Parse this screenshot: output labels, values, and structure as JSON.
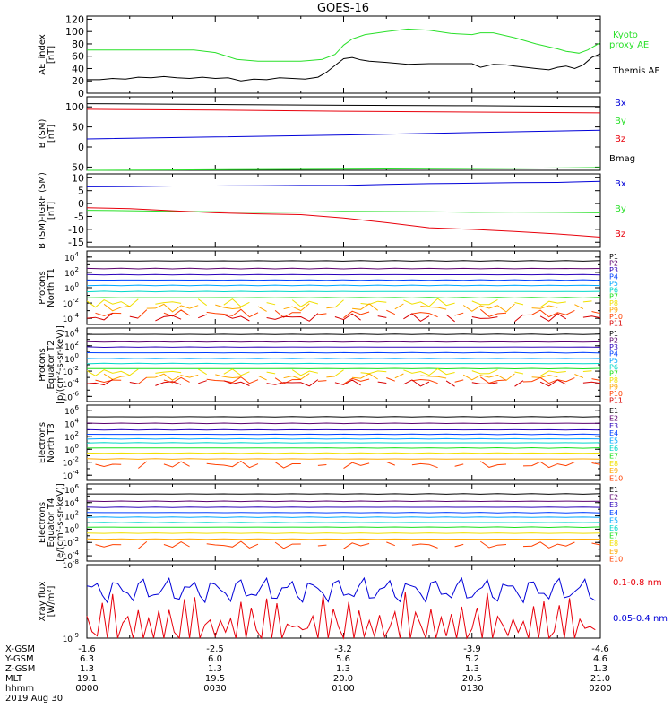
{
  "title": "GOES-16",
  "colors": {
    "black": "#000000",
    "red": "#e8000b",
    "green": "#2ae02a",
    "blue": "#0000d8",
    "p": [
      "#000000",
      "#5b006d",
      "#2a00ba",
      "#0040ff",
      "#00a8ff",
      "#00d8c8",
      "#18e018",
      "#f0e000",
      "#ffa800",
      "#ff4000",
      "#d80000"
    ]
  },
  "panels": [
    {
      "id": "ae",
      "ylabel": [
        "AE_index",
        "[nT]"
      ],
      "scale": "linear",
      "ticks": [
        "120",
        "100",
        "80",
        "60",
        "40",
        "20",
        "0"
      ],
      "tickvals": [
        120,
        100,
        80,
        60,
        40,
        20,
        0
      ],
      "range": [
        0,
        125
      ],
      "legend": [
        {
          "text": "Kyoto",
          "color": "green"
        },
        {
          "text": "proxy AE",
          "color": "green"
        },
        {
          "text": "Themis AE",
          "color": "black"
        }
      ]
    },
    {
      "id": "bsm",
      "ylabel": [
        "B (SM)",
        "[nT]"
      ],
      "scale": "linear",
      "ticks": [
        "100",
        "50",
        "0",
        "-50"
      ],
      "tickvals": [
        100,
        50,
        0,
        -50
      ],
      "range": [
        -58,
        125
      ],
      "legend": [
        {
          "text": "Bx",
          "color": "blue"
        },
        {
          "text": "By",
          "color": "green"
        },
        {
          "text": "Bz",
          "color": "red"
        },
        {
          "text": "Bmag",
          "color": "black"
        }
      ]
    },
    {
      "id": "bigrf",
      "ylabel": [
        "B (SM)-IGRF (SM)",
        "[nT]"
      ],
      "scale": "linear",
      "ticks": [
        "10",
        "5",
        "0",
        "-5",
        "-10",
        "-15"
      ],
      "tickvals": [
        10,
        5,
        0,
        -5,
        -10,
        -15
      ],
      "range": [
        -17,
        11.5
      ],
      "legend": [
        {
          "text": "Bx",
          "color": "blue"
        },
        {
          "text": "By",
          "color": "green"
        },
        {
          "text": "Bz",
          "color": "red"
        }
      ]
    },
    {
      "id": "pn",
      "ylabel": [
        "Protons",
        "North T1"
      ],
      "scale": "log",
      "ticks": [
        "10",
        "10",
        "10",
        "10",
        "10"
      ],
      "exps": [
        "4",
        "2",
        "0",
        "-2",
        "-4"
      ],
      "tickvals": [
        4,
        2,
        0,
        -2,
        -4
      ],
      "range": [
        -4.8,
        4.8
      ],
      "legend": [
        "P1",
        "P2",
        "P3",
        "P4",
        "P5",
        "P6",
        "P7",
        "P8",
        "P9",
        "P10",
        "P11"
      ]
    },
    {
      "id": "pe",
      "ylabel": [
        "Protons",
        "Equator T2",
        "[p/(cm²-s-sr-keV)]"
      ],
      "scale": "log",
      "ticks": [
        "10",
        "10",
        "10",
        "10",
        "10",
        "10"
      ],
      "exps": [
        "4",
        "2",
        "0",
        "-2",
        "-4",
        "-6"
      ],
      "tickvals": [
        4,
        2,
        0,
        -2,
        -4,
        -6
      ],
      "range": [
        -6.8,
        4.8
      ],
      "legend": [
        "P1",
        "P2",
        "P3",
        "P4",
        "P5",
        "P6",
        "P7",
        "P8",
        "P9",
        "P10",
        "P11"
      ]
    },
    {
      "id": "en",
      "ylabel": [
        "Electrons",
        "North T3"
      ],
      "scale": "log",
      "ticks": [
        "10",
        "10",
        "10",
        "10",
        "10",
        "10"
      ],
      "exps": [
        "6",
        "4",
        "2",
        "0",
        "-2",
        "-4"
      ],
      "tickvals": [
        6,
        4,
        2,
        0,
        -2,
        -4
      ],
      "range": [
        -4.8,
        6.8
      ],
      "legend": [
        "E1",
        "E2",
        "E3",
        "E4",
        "E5",
        "E6",
        "E7",
        "E8",
        "E9",
        "E10"
      ]
    },
    {
      "id": "ee",
      "ylabel": [
        "Electrons",
        "Equator T4",
        "[e/(cm²-s-sr-keV)]"
      ],
      "scale": "log",
      "ticks": [
        "10",
        "10",
        "10",
        "10",
        "10",
        "10"
      ],
      "exps": [
        "6",
        "4",
        "2",
        "0",
        "-2",
        "-4"
      ],
      "tickvals": [
        6,
        4,
        2,
        0,
        -2,
        -4
      ],
      "range": [
        -4.8,
        6.8
      ],
      "legend": [
        "E1",
        "E2",
        "E3",
        "E4",
        "E5",
        "E6",
        "E7",
        "E8",
        "E9",
        "E10"
      ]
    },
    {
      "id": "xray",
      "ylabel": [
        "Xray flux",
        "[W/m²]"
      ],
      "scale": "log",
      "ticks": [
        "10",
        "10"
      ],
      "exps": [
        "-8",
        "-9"
      ],
      "tickvals": [
        -8,
        -9
      ],
      "range": [
        -9,
        -8
      ],
      "legend": [
        {
          "text": "0.1-0.8 nm",
          "color": "red"
        },
        {
          "text": "0.05-0.4 nm",
          "color": "blue"
        }
      ]
    }
  ],
  "orbit": {
    "labels": [
      "X-GSM",
      "Y-GSM",
      "Z-GSM",
      "MLT",
      "hhmm",
      "2019 Aug 30"
    ],
    "columns": [
      [
        "-1.6",
        "6.3",
        "1.3",
        "19.1",
        "0000"
      ],
      [
        "-2.5",
        "6.0",
        "1.3",
        "19.5",
        "0030"
      ],
      [
        "-3.2",
        "5.6",
        "1.3",
        "20.0",
        "0100"
      ],
      [
        "-3.9",
        "5.2",
        "1.3",
        "20.5",
        "0130"
      ],
      [
        "-4.6",
        "4.6",
        "1.3",
        "21.0",
        "0200"
      ]
    ]
  },
  "chart_data": {
    "type": "line",
    "title": "GOES-16",
    "x_unit": "minutes since 0000 UT",
    "xlim": [
      0,
      120
    ],
    "series": [
      {
        "panel": "ae",
        "name": "Kyoto proxy AE",
        "color": "green",
        "x": [
          0,
          5,
          10,
          15,
          20,
          25,
          30,
          35,
          40,
          45,
          50,
          52,
          55,
          58,
          60,
          62,
          65,
          68,
          70,
          75,
          80,
          85,
          90,
          92,
          95,
          100,
          105,
          110,
          112,
          115,
          117,
          120
        ],
        "y": [
          70,
          70,
          70,
          70,
          70,
          70,
          66,
          55,
          52,
          52,
          52,
          53,
          55,
          63,
          78,
          88,
          95,
          98,
          100,
          104,
          102,
          97,
          95,
          98,
          98,
          90,
          80,
          72,
          68,
          65,
          70,
          82
        ]
      },
      {
        "panel": "ae",
        "name": "Themis AE",
        "color": "black",
        "x": [
          0,
          3,
          6,
          9,
          12,
          15,
          18,
          21,
          24,
          27,
          30,
          33,
          36,
          39,
          42,
          45,
          48,
          51,
          54,
          56,
          58,
          60,
          62,
          64,
          66,
          70,
          75,
          80,
          85,
          90,
          92,
          95,
          98,
          100,
          105,
          108,
          110,
          112,
          114,
          116,
          118,
          120
        ],
        "y": [
          22,
          22,
          24,
          23,
          26,
          25,
          27,
          25,
          24,
          26,
          24,
          25,
          20,
          23,
          22,
          25,
          24,
          23,
          26,
          34,
          45,
          56,
          58,
          54,
          52,
          50,
          47,
          48,
          48,
          48,
          42,
          47,
          46,
          44,
          40,
          38,
          42,
          44,
          40,
          46,
          58,
          64
        ]
      },
      {
        "panel": "bsm",
        "name": "Bmag",
        "color": "black",
        "x": [
          0,
          30,
          60,
          90,
          120
        ],
        "y": [
          108,
          106,
          104,
          103,
          101
        ]
      },
      {
        "panel": "bsm",
        "name": "Bz",
        "color": "red",
        "x": [
          0,
          30,
          60,
          90,
          120
        ],
        "y": [
          94,
          92,
          89,
          87,
          85
        ]
      },
      {
        "panel": "bsm",
        "name": "Bx",
        "color": "blue",
        "x": [
          0,
          30,
          60,
          90,
          120
        ],
        "y": [
          20,
          25,
          30,
          36,
          42
        ]
      },
      {
        "panel": "bsm",
        "name": "By",
        "color": "green",
        "x": [
          0,
          20,
          40,
          60,
          80,
          100,
          120
        ],
        "y": [
          -58,
          -57,
          -56,
          -55,
          -54,
          -53,
          -51
        ]
      },
      {
        "panel": "bigrf",
        "name": "Bx",
        "color": "blue",
        "x": [
          0,
          10,
          20,
          30,
          40,
          50,
          60,
          70,
          80,
          90,
          100,
          110,
          120
        ],
        "y": [
          6.5,
          6.6,
          6.8,
          6.8,
          6.9,
          7.0,
          7.0,
          7.4,
          7.7,
          7.9,
          8.1,
          8.2,
          8.6
        ]
      },
      {
        "panel": "bigrf",
        "name": "By",
        "color": "green",
        "x": [
          0,
          10,
          20,
          30,
          40,
          50,
          60,
          70,
          80,
          90,
          100,
          110,
          120
        ],
        "y": [
          -2.6,
          -2.8,
          -3.0,
          -3.2,
          -3.4,
          -3.3,
          -3.0,
          -3.1,
          -3.2,
          -3.4,
          -3.3,
          -3.4,
          -3.6
        ]
      },
      {
        "panel": "bigrf",
        "name": "Bz",
        "color": "red",
        "x": [
          0,
          10,
          20,
          30,
          40,
          50,
          60,
          70,
          80,
          90,
          100,
          110,
          120
        ],
        "y": [
          -1.6,
          -2.0,
          -2.8,
          -3.6,
          -4.0,
          -4.3,
          -5.6,
          -7.4,
          -9.4,
          -10.0,
          -10.8,
          -11.8,
          -13.0
        ]
      }
    ],
    "flux_levels": {
      "pn": [
        3.5,
        2.5,
        1.7,
        1.0,
        0.3,
        -0.5,
        -1.3,
        -2.0,
        -2.6,
        -3.4,
        -3.9
      ],
      "pe": [
        3.8,
        2.6,
        1.8,
        0.9,
        0.0,
        -0.8,
        -1.6,
        -2.2,
        -2.9,
        -3.5,
        -3.9
      ],
      "en": [
        5.0,
        4.0,
        3.0,
        2.3,
        1.6,
        1.0,
        0.2,
        -0.6,
        -1.5,
        -2.4
      ],
      "ee": [
        5.3,
        4.2,
        3.3,
        2.5,
        1.8,
        1.0,
        0.3,
        -0.6,
        -1.5,
        -2.4
      ]
    },
    "xray": {
      "short": {
        "name": "0.05-0.4 nm",
        "color": "blue",
        "level": -8.35
      },
      "long": {
        "name": "0.1-0.8 nm",
        "color": "red",
        "level": -8.85
      }
    }
  }
}
